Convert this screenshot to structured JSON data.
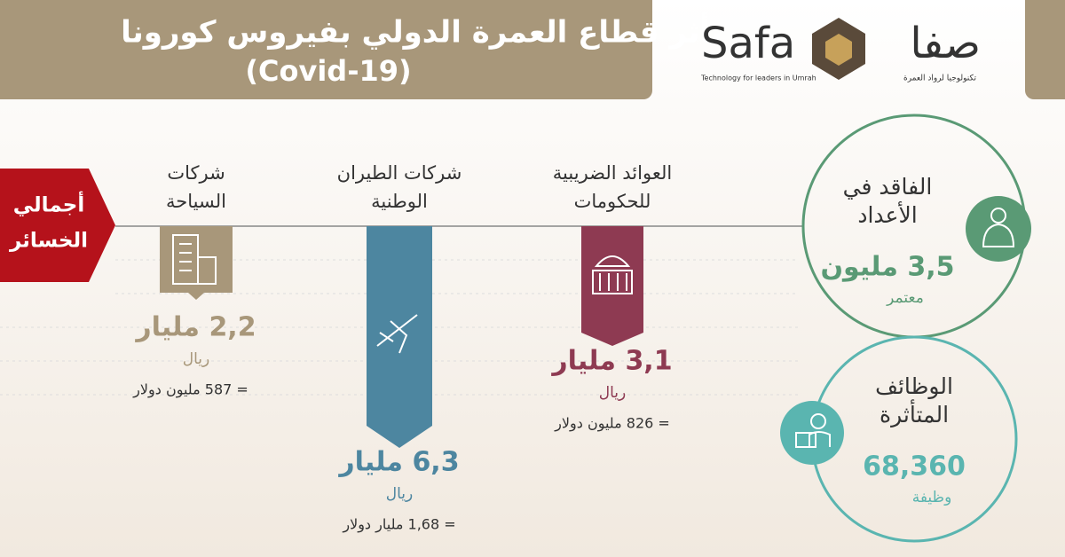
{
  "header": {
    "title": "تأثر قطاع العمرة الدولي بفيروس كورونا",
    "subtitle": "(Covid-19)"
  },
  "logo": {
    "latin": "Safa",
    "arabic": "صفا",
    "tagline_en": "Technology for leaders in Umrah",
    "tagline_ar": "تكنولوجيا لرواد العمرة"
  },
  "total_label": [
    "أجمالي",
    "الخسائر"
  ],
  "sectors": [
    {
      "title": [
        "شركات",
        "السياحة"
      ],
      "amount": "2,2 مليار",
      "currency": "ريال",
      "usd": "= 587 مليون دولار"
    },
    {
      "title": [
        "شركات الطيران",
        "الوطنية"
      ],
      "amount": "6,3 مليار",
      "currency": "ريال",
      "usd": "= 1,68 مليار دولار"
    },
    {
      "title": [
        "العوائد الضريبية",
        "للحكومات"
      ],
      "amount": "3,1 مليار",
      "currency": "ريال",
      "usd": "= 826 مليون دولار"
    }
  ],
  "stats": [
    {
      "title": [
        "الفاقد في",
        "الأعداد"
      ],
      "value": "3,5 مليون",
      "unit": "معتمر"
    },
    {
      "title": [
        "الوظائف",
        "المتأثرة"
      ],
      "value": "68,360",
      "unit": "وظيفة"
    }
  ]
}
